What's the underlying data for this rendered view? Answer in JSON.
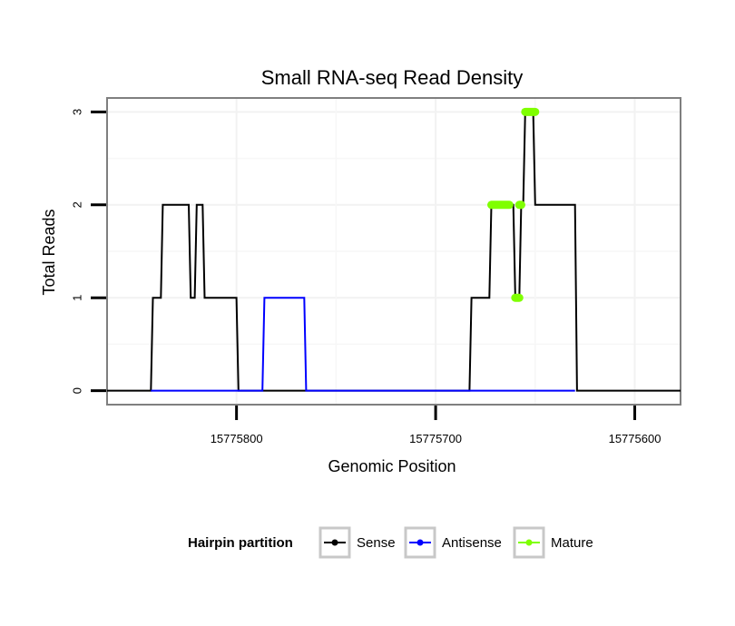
{
  "chart_data": {
    "type": "line",
    "title": "Small RNA-seq Read Density",
    "xlabel": "Genomic Position",
    "ylabel": "Total Reads",
    "x_reversed": true,
    "xlim": [
      15775865,
      15775577
    ],
    "ylim": [
      -0.15,
      3.15
    ],
    "x_ticks": [
      15775800,
      15775700,
      15775600
    ],
    "x_tick_labels": [
      "15775800",
      "15775700",
      "15775600"
    ],
    "y_ticks": [
      0,
      1,
      2,
      3
    ],
    "y_tick_labels": [
      "0",
      "1",
      "2",
      "3"
    ],
    "grid": true,
    "legend": {
      "title": "Hairpin partition",
      "position": "bottom",
      "entries": [
        "Sense",
        "Antisense",
        "Mature"
      ]
    },
    "series": [
      {
        "name": "Sense",
        "color": "#000000",
        "points": [
          [
            15775865,
            0
          ],
          [
            15775843,
            0
          ],
          [
            15775842,
            1
          ],
          [
            15775838,
            1
          ],
          [
            15775837,
            2
          ],
          [
            15775824,
            2
          ],
          [
            15775823,
            1
          ],
          [
            15775821,
            1
          ],
          [
            15775820,
            2
          ],
          [
            15775817,
            2
          ],
          [
            15775816,
            1
          ],
          [
            15775800,
            1
          ],
          [
            15775799,
            0
          ],
          [
            15775683,
            0
          ],
          [
            15775682,
            1
          ],
          [
            15775673,
            1
          ],
          [
            15775672,
            2
          ],
          [
            15775661,
            2
          ],
          [
            15775660,
            1
          ],
          [
            15775658,
            1
          ],
          [
            15775657,
            2
          ],
          [
            15775656,
            2
          ],
          [
            15775655,
            3
          ],
          [
            15775651,
            3
          ],
          [
            15775650,
            2
          ],
          [
            15775630,
            2
          ],
          [
            15775629,
            0
          ],
          [
            15775577,
            0
          ]
        ]
      },
      {
        "name": "Antisense",
        "color": "#0000ff",
        "points": [
          [
            15775843,
            0
          ],
          [
            15775787,
            0
          ],
          [
            15775786,
            1
          ],
          [
            15775766,
            1
          ],
          [
            15775765,
            0
          ],
          [
            15775630,
            0
          ]
        ]
      },
      {
        "name": "Mature",
        "color": "#7fff00",
        "segments": [
          [
            [
              15775672,
              2
            ],
            [
              15775663,
              2
            ]
          ],
          [
            [
              15775660,
              1
            ],
            [
              15775658,
              1
            ]
          ],
          [
            [
              15775658,
              2
            ],
            [
              15775657,
              2
            ]
          ],
          [
            [
              15775655,
              3
            ],
            [
              15775650,
              3
            ]
          ]
        ]
      }
    ]
  }
}
